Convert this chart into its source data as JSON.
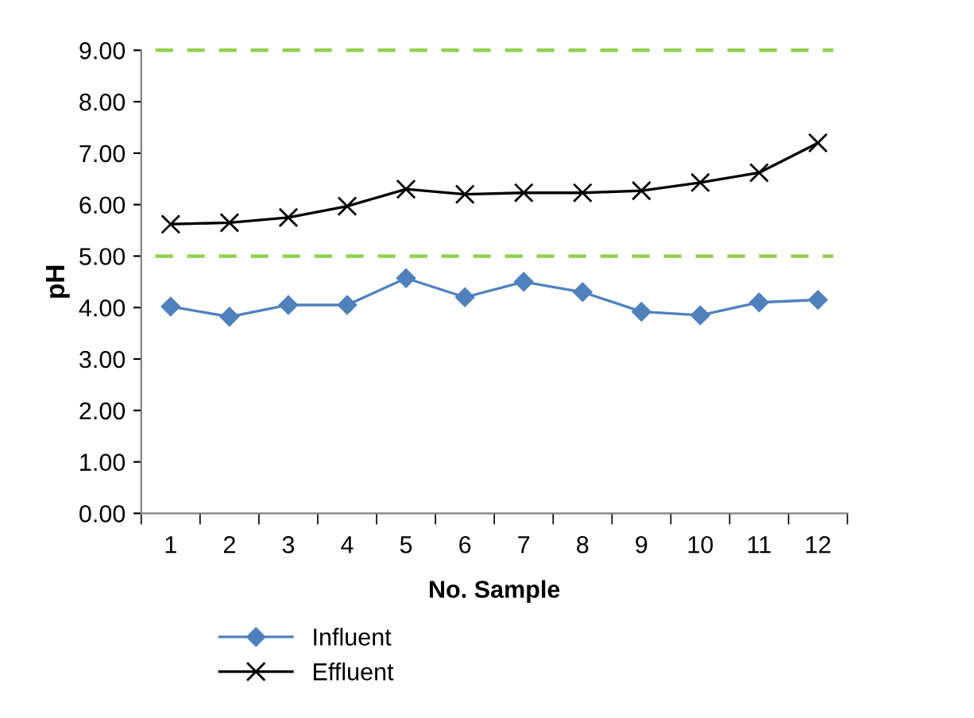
{
  "chart_data": {
    "type": "line",
    "xlabel": "No. Sample",
    "ylabel": "pH",
    "categories": [
      "1",
      "2",
      "3",
      "4",
      "5",
      "6",
      "7",
      "8",
      "9",
      "10",
      "11",
      "12"
    ],
    "series": [
      {
        "name": "Influent",
        "color": "#4f81bd",
        "marker": "diamond",
        "values": [
          4.02,
          3.82,
          4.05,
          4.05,
          4.57,
          4.2,
          4.5,
          4.3,
          3.92,
          3.85,
          4.1,
          4.15
        ]
      },
      {
        "name": "Effluent",
        "color": "#000000",
        "marker": "cross",
        "values": [
          5.62,
          5.65,
          5.75,
          5.97,
          6.3,
          6.2,
          6.23,
          6.23,
          6.27,
          6.43,
          6.62,
          7.2
        ]
      }
    ],
    "ylim": [
      0,
      9
    ],
    "yticks": [
      {
        "value": 0,
        "label": "0.00"
      },
      {
        "value": 1,
        "label": "1.00"
      },
      {
        "value": 2,
        "label": "2.00"
      },
      {
        "value": 3,
        "label": "3.00"
      },
      {
        "value": 4,
        "label": "4.00"
      },
      {
        "value": 5,
        "label": "5.00"
      },
      {
        "value": 6,
        "label": "6.00"
      },
      {
        "value": 7,
        "label": "7.00"
      },
      {
        "value": 8,
        "label": "8.00"
      },
      {
        "value": 9,
        "label": "9.00"
      }
    ],
    "ref_lines": [
      {
        "axis": "y",
        "value": 5,
        "color": "#92d050",
        "line_style": "dashed"
      },
      {
        "axis": "y",
        "value": 9,
        "color": "#92d050",
        "line_style": "dashed"
      }
    ],
    "grid": false,
    "legend": "bottom",
    "line_style": "solid"
  }
}
